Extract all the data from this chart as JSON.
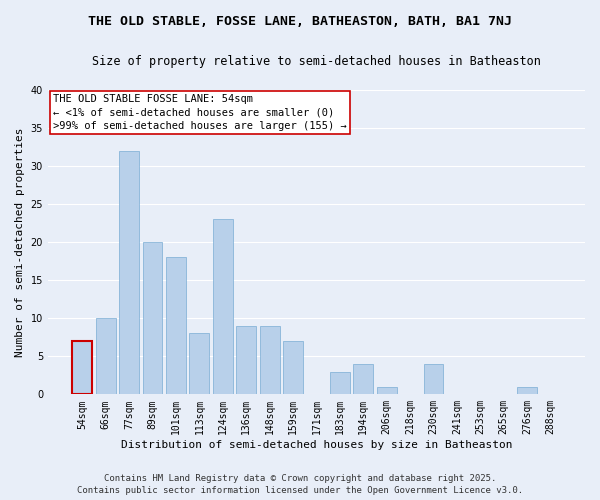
{
  "title": "THE OLD STABLE, FOSSE LANE, BATHEASTON, BATH, BA1 7NJ",
  "subtitle": "Size of property relative to semi-detached houses in Batheaston",
  "xlabel": "Distribution of semi-detached houses by size in Batheaston",
  "ylabel": "Number of semi-detached properties",
  "bin_labels": [
    "54sqm",
    "66sqm",
    "77sqm",
    "89sqm",
    "101sqm",
    "113sqm",
    "124sqm",
    "136sqm",
    "148sqm",
    "159sqm",
    "171sqm",
    "183sqm",
    "194sqm",
    "206sqm",
    "218sqm",
    "230sqm",
    "241sqm",
    "253sqm",
    "265sqm",
    "276sqm",
    "288sqm"
  ],
  "bar_heights": [
    7,
    10,
    32,
    20,
    18,
    8,
    23,
    9,
    9,
    7,
    0,
    3,
    4,
    1,
    0,
    4,
    0,
    0,
    0,
    1,
    0
  ],
  "highlight_index": 0,
  "bar_color": "#b8d0ea",
  "highlight_edge_color": "#cc0000",
  "normal_edge_color": "#7aadd4",
  "ylim": [
    0,
    40
  ],
  "yticks": [
    0,
    5,
    10,
    15,
    20,
    25,
    30,
    35,
    40
  ],
  "annotation_title": "THE OLD STABLE FOSSE LANE: 54sqm",
  "annotation_line1": "← <1% of semi-detached houses are smaller (0)",
  "annotation_line2": ">99% of semi-detached houses are larger (155) →",
  "footer1": "Contains HM Land Registry data © Crown copyright and database right 2025.",
  "footer2": "Contains public sector information licensed under the Open Government Licence v3.0.",
  "background_color": "#e8eef8",
  "plot_bg_color": "#e8eef8",
  "grid_color": "#ffffff",
  "title_fontsize": 9.5,
  "subtitle_fontsize": 8.5,
  "axis_label_fontsize": 8,
  "tick_fontsize": 7,
  "annotation_fontsize": 7.5,
  "footer_fontsize": 6.5
}
